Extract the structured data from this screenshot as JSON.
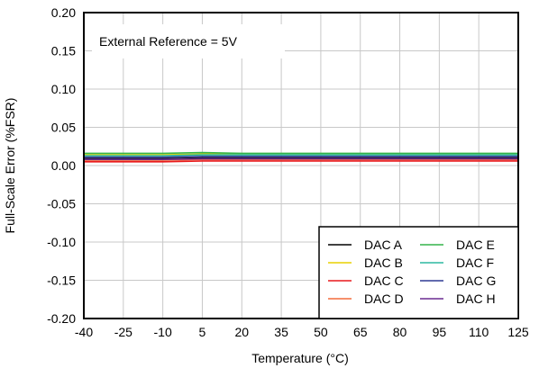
{
  "chart_data": {
    "type": "line",
    "title": "",
    "xlabel": "Temperature (°C)",
    "ylabel": "Full-Scale Error (%FSR)",
    "xlim": [
      -40,
      125
    ],
    "ylim": [
      -0.2,
      0.2
    ],
    "grid": true,
    "legend_position": "bottom-right",
    "annotation": "External Reference = 5V",
    "x_ticks": [
      -40,
      -25,
      -10,
      5,
      20,
      35,
      50,
      65,
      80,
      95,
      110,
      125
    ],
    "x_tick_labels": [
      "-40",
      "-25",
      "-10",
      "5",
      "20",
      "35",
      "50",
      "65",
      "80",
      "95",
      "110",
      "125"
    ],
    "y_ticks": [
      0.2,
      0.15,
      0.1,
      0.05,
      0.0,
      -0.05,
      -0.1,
      -0.15,
      -0.2
    ],
    "y_tick_labels": [
      "0.20",
      "0.15",
      "0.10",
      "0.05",
      "0.00",
      "-0.05",
      "-0.10",
      "-0.15",
      "-0.20"
    ],
    "x": [
      -40,
      -25,
      -10,
      5,
      20,
      35,
      50,
      65,
      80,
      95,
      110,
      125
    ],
    "series": [
      {
        "name": "DAC A",
        "color": "#000000",
        "values": [
          0.009,
          0.009,
          0.009,
          0.01,
          0.01,
          0.01,
          0.01,
          0.01,
          0.01,
          0.01,
          0.01,
          0.01
        ]
      },
      {
        "name": "DAC B",
        "color": "#e8d100",
        "values": [
          0.014,
          0.014,
          0.014,
          0.015,
          0.015,
          0.015,
          0.015,
          0.015,
          0.015,
          0.015,
          0.015,
          0.015
        ]
      },
      {
        "name": "DAC C",
        "color": "#e8191c",
        "values": [
          0.005,
          0.005,
          0.005,
          0.006,
          0.006,
          0.006,
          0.006,
          0.006,
          0.006,
          0.006,
          0.006,
          0.006
        ]
      },
      {
        "name": "DAC D",
        "color": "#f36b3c",
        "values": [
          0.007,
          0.007,
          0.007,
          0.008,
          0.008,
          0.008,
          0.008,
          0.008,
          0.008,
          0.008,
          0.008,
          0.008
        ]
      },
      {
        "name": "DAC E",
        "color": "#33b44a",
        "values": [
          0.016,
          0.016,
          0.016,
          0.017,
          0.016,
          0.016,
          0.016,
          0.016,
          0.016,
          0.016,
          0.016,
          0.016
        ]
      },
      {
        "name": "DAC F",
        "color": "#2db8a0",
        "values": [
          0.013,
          0.013,
          0.013,
          0.014,
          0.014,
          0.014,
          0.014,
          0.014,
          0.014,
          0.014,
          0.014,
          0.014
        ]
      },
      {
        "name": "DAC G",
        "color": "#2f3a93",
        "values": [
          0.011,
          0.011,
          0.011,
          0.012,
          0.012,
          0.012,
          0.012,
          0.012,
          0.012,
          0.012,
          0.012,
          0.012
        ]
      },
      {
        "name": "DAC H",
        "color": "#6a2c91",
        "values": [
          0.008,
          0.008,
          0.008,
          0.009,
          0.009,
          0.009,
          0.009,
          0.009,
          0.009,
          0.009,
          0.009,
          0.009
        ]
      }
    ]
  }
}
